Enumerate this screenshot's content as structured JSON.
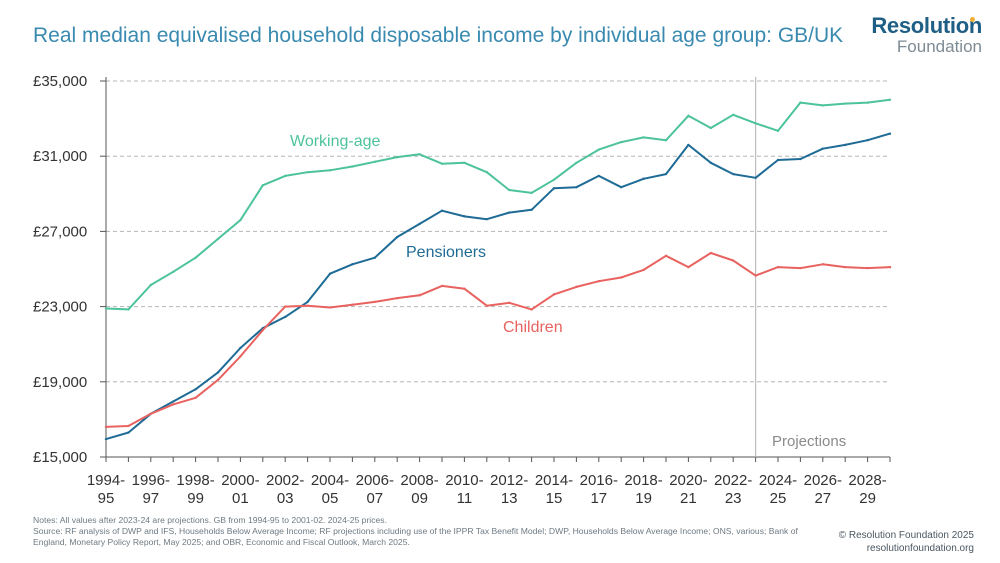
{
  "header": {
    "title": "Real median equivalised household disposable income by individual age group: GB/UK",
    "logo_line1": "Resolution",
    "logo_line2": "Foundation"
  },
  "chart_data": {
    "type": "line",
    "title": "Real median equivalised household disposable income by individual age group: GB/UK",
    "xlabel": "",
    "ylabel": "",
    "ylim": [
      15000,
      35000
    ],
    "y_ticks": [
      15000,
      19000,
      23000,
      27000,
      31000,
      35000
    ],
    "y_tick_labels": [
      "£15,000",
      "£19,000",
      "£23,000",
      "£27,000",
      "£31,000",
      "£35,000"
    ],
    "x": [
      "1994-95",
      "1995-96",
      "1996-97",
      "1997-98",
      "1998-99",
      "1999-00",
      "2000-01",
      "2001-02",
      "2002-03",
      "2003-04",
      "2004-05",
      "2005-06",
      "2006-07",
      "2007-08",
      "2008-09",
      "2009-10",
      "2010-11",
      "2011-12",
      "2012-13",
      "2013-14",
      "2014-15",
      "2015-16",
      "2016-17",
      "2017-18",
      "2018-19",
      "2019-20",
      "2020-21",
      "2021-22",
      "2022-23",
      "2023-24",
      "2024-25",
      "2025-26",
      "2026-27",
      "2027-28",
      "2028-29",
      "2029-30"
    ],
    "x_tick_labels": [
      {
        "top": "1994-",
        "bottom": "95"
      },
      {
        "top": "1996-",
        "bottom": "97"
      },
      {
        "top": "1998-",
        "bottom": "99"
      },
      {
        "top": "2000-",
        "bottom": "01"
      },
      {
        "top": "2002-",
        "bottom": "03"
      },
      {
        "top": "2004-",
        "bottom": "05"
      },
      {
        "top": "2006-",
        "bottom": "07"
      },
      {
        "top": "2008-",
        "bottom": "09"
      },
      {
        "top": "2010-",
        "bottom": "11"
      },
      {
        "top": "2012-",
        "bottom": "13"
      },
      {
        "top": "2014-",
        "bottom": "15"
      },
      {
        "top": "2016-",
        "bottom": "17"
      },
      {
        "top": "2018-",
        "bottom": "19"
      },
      {
        "top": "2020-",
        "bottom": "21"
      },
      {
        "top": "2022-",
        "bottom": "23"
      },
      {
        "top": "2024-",
        "bottom": "25"
      },
      {
        "top": "2026-",
        "bottom": "27"
      },
      {
        "top": "2028-",
        "bottom": "29"
      }
    ],
    "series": [
      {
        "name": "Working-age",
        "color": "#4cc39a",
        "values": [
          22900,
          22850,
          24150,
          24850,
          25600,
          26600,
          27600,
          29450,
          29950,
          30150,
          30250,
          30450,
          30700,
          30950,
          31100,
          30600,
          30650,
          30150,
          29200,
          29050,
          29750,
          30650,
          31350,
          31750,
          32000,
          31850,
          33150,
          32500,
          33200,
          32750,
          32350,
          33850,
          33700,
          33800,
          33850,
          34000
        ]
      },
      {
        "name": "Pensioners",
        "color": "#1e6b96",
        "values": [
          15950,
          16300,
          17300,
          17950,
          18600,
          19500,
          20800,
          21850,
          22450,
          23250,
          24750,
          25250,
          25600,
          26700,
          27400,
          28100,
          27800,
          27650,
          28000,
          28150,
          29300,
          29350,
          29950,
          29350,
          29800,
          30050,
          31600,
          30650,
          30050,
          29850,
          30800,
          30850,
          31400,
          31600,
          31850,
          32200
        ]
      },
      {
        "name": "Children",
        "color": "#e8625f",
        "values": [
          16600,
          16650,
          17300,
          17800,
          18150,
          19100,
          20350,
          21750,
          23000,
          23050,
          22950,
          23100,
          23250,
          23450,
          23600,
          24100,
          23950,
          23050,
          23200,
          22850,
          23650,
          24050,
          24350,
          24550,
          24950,
          25700,
          25100,
          25850,
          25450,
          24650,
          25100,
          25050,
          25250,
          25100,
          25050,
          25100
        ]
      }
    ],
    "series_labels": [
      "Working-age",
      "Pensioners",
      "Children"
    ],
    "projection_start": "2023-24",
    "annotation": "Projections",
    "grid": true,
    "gridline_style": "dashed"
  },
  "footer": {
    "notes": "Notes: All values after 2023-24 are projections. GB from 1994-95 to 2001-02. 2024-25 prices.",
    "source": "Source: RF analysis of DWP and IFS, Households Below Average Income; RF projections including use of the IPPR Tax Benefit Model; DWP, Households Below Average Income; ONS, various; Bank of England, Monetary Policy Report, May 2025; and OBR, Economic and Fiscal Outlook, March 2025.",
    "copyright": "© Resolution Foundation 2025",
    "website": "resolutionfoundation.org"
  }
}
